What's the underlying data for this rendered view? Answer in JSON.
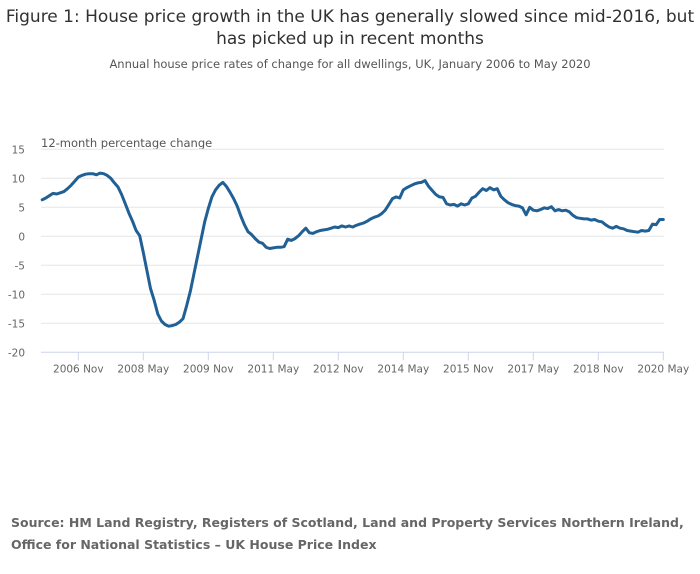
{
  "title": "Figure 1: House price growth in the UK has generally slowed since mid-2016, but has picked up in recent months",
  "subtitle": "Annual house price rates of change for all dwellings, UK, January 2006 to May 2020",
  "source": "Source: HM Land Registry, Registers of Scotland, Land and Property Services Northern Ireland, Office for National Statistics – UK House Price Index",
  "chart_data": {
    "type": "line",
    "ylabel": "12-month percentage change",
    "ylim": [
      -20,
      15
    ],
    "yticks": [
      15,
      10,
      5,
      0,
      -5,
      -10,
      -15,
      -20
    ],
    "x_start": "2006-01",
    "x_end": "2020-05",
    "xtick_labels": [
      "2006 Nov",
      "2008 May",
      "2009 Nov",
      "2011 May",
      "2012 Nov",
      "2014 May",
      "2015 Nov",
      "2017 May",
      "2018 Nov",
      "2020 May"
    ],
    "xtick_months": [
      "2006-11",
      "2008-05",
      "2009-11",
      "2011-05",
      "2012-11",
      "2014-05",
      "2015-11",
      "2017-05",
      "2018-11",
      "2020-05"
    ],
    "grid": true,
    "line_color": "#206095",
    "series": [
      {
        "frequency": "monthly",
        "values": [
          6.3,
          6.6,
          7.0,
          7.4,
          7.3,
          7.5,
          7.7,
          8.2,
          8.8,
          9.5,
          10.2,
          10.5,
          10.7,
          10.8,
          10.8,
          10.6,
          10.9,
          10.8,
          10.5,
          10.0,
          9.2,
          8.5,
          7.2,
          5.6,
          4.0,
          2.6,
          1.0,
          0.1,
          -2.8,
          -5.9,
          -9.0,
          -11.0,
          -13.4,
          -14.6,
          -15.2,
          -15.5,
          -15.4,
          -15.2,
          -14.8,
          -14.2,
          -12.0,
          -9.5,
          -6.5,
          -3.5,
          -0.5,
          2.5,
          4.8,
          6.8,
          8.0,
          8.8,
          9.3,
          8.6,
          7.6,
          6.5,
          5.2,
          3.5,
          2.0,
          0.8,
          0.3,
          -0.4,
          -1.0,
          -1.2,
          -1.9,
          -2.1,
          -2.0,
          -1.9,
          -1.9,
          -1.8,
          -0.5,
          -0.7,
          -0.4,
          0.1,
          0.8,
          1.4,
          0.6,
          0.5,
          0.8,
          1.0,
          1.1,
          1.2,
          1.4,
          1.6,
          1.5,
          1.8,
          1.6,
          1.8,
          1.6,
          1.9,
          2.1,
          2.3,
          2.6,
          3.0,
          3.3,
          3.5,
          3.9,
          4.5,
          5.5,
          6.5,
          6.8,
          6.6,
          8.0,
          8.4,
          8.7,
          9.0,
          9.2,
          9.3,
          9.6,
          8.6,
          7.9,
          7.2,
          6.8,
          6.7,
          5.6,
          5.4,
          5.5,
          5.2,
          5.6,
          5.4,
          5.6,
          6.6,
          6.9,
          7.6,
          8.2,
          7.9,
          8.4,
          8.0,
          8.2,
          6.9,
          6.3,
          5.8,
          5.5,
          5.3,
          5.2,
          4.9,
          3.7,
          5.0,
          4.5,
          4.4,
          4.6,
          4.9,
          4.8,
          5.1,
          4.4,
          4.6,
          4.4,
          4.5,
          4.2,
          3.6,
          3.2,
          3.1,
          3.0,
          3.0,
          2.8,
          2.9,
          2.6,
          2.5,
          2.0,
          1.6,
          1.4,
          1.7,
          1.4,
          1.3,
          1.0,
          0.9,
          0.8,
          0.7,
          1.0,
          0.9,
          1.0,
          2.1,
          2.0,
          2.9,
          2.9
        ]
      }
    ]
  }
}
